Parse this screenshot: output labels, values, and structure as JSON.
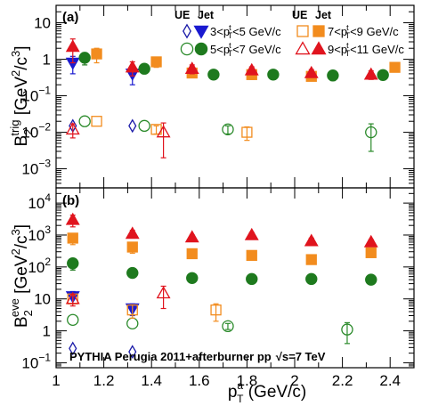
{
  "chart_data": [
    {
      "panel": "(a)",
      "type": "scatter",
      "ylabel": "B_2^trig [GeV^2/c^3]",
      "ylabel_main": "B",
      "ylabel_sub": "2",
      "ylabel_sup": "trig",
      "ylabel_units": " [GeV",
      "ylabel_units_sup": "2",
      "ylabel_units_end": "/c",
      "ylabel_units_sup2": "3",
      "ylabel_units_close": "]",
      "yscale": "log",
      "ylim": [
        0.0003,
        30
      ],
      "yticks": [
        {
          "v": 0.001,
          "lbl": "10"
        },
        {
          "v": 0.01,
          "lbl": "10"
        },
        {
          "v": 0.1,
          "lbl": "10"
        },
        {
          "v": 1,
          "lbl": "1"
        },
        {
          "v": 10,
          "lbl": "10"
        }
      ],
      "ytick_exps": [
        "−3",
        "−2",
        "−1",
        "",
        ""
      ],
      "xlim": [
        1.0,
        2.5
      ],
      "series": [
        {
          "key": "s1_ue",
          "marker": "diamond-open",
          "color": "#1a1aa8",
          "x": [
            1.07,
            1.32
          ],
          "y": [
            0.015,
            0.015
          ],
          "err": [
            0,
            0
          ]
        },
        {
          "key": "s1_jet",
          "marker": "tri-down-filled",
          "color": "#1a1ad0",
          "x": [
            1.07,
            1.32
          ],
          "y": [
            0.8,
            0.4
          ],
          "err": [
            0.4,
            0.2
          ]
        },
        {
          "key": "s2_ue",
          "marker": "circle-open",
          "color": "#2a8a2a",
          "x": [
            1.12,
            1.37,
            1.72,
            2.32
          ],
          "y": [
            0.02,
            0.015,
            0.012,
            0.01
          ],
          "err": [
            0,
            0,
            0.003,
            0.007
          ]
        },
        {
          "key": "s2_jet",
          "marker": "circle-filled",
          "color": "#1e7a1e",
          "x": [
            1.12,
            1.37,
            1.66,
            1.91,
            2.16,
            2.37
          ],
          "y": [
            1.1,
            0.55,
            0.38,
            0.38,
            0.36,
            0.37
          ],
          "err": [
            0.4,
            0.15,
            0.1,
            0.1,
            0.1,
            0.1
          ]
        },
        {
          "key": "s3_ue",
          "marker": "square-open",
          "color": "#f28c1e",
          "x": [
            1.17,
            1.42,
            1.8
          ],
          "y": [
            0.02,
            0.012,
            0.01
          ],
          "err": [
            0,
            0.003,
            0.004
          ]
        },
        {
          "key": "s3_jet",
          "marker": "square-filled",
          "color": "#f28c1e",
          "x": [
            1.17,
            1.42,
            1.57,
            1.82,
            2.07,
            2.42
          ],
          "y": [
            1.4,
            0.85,
            0.42,
            0.38,
            0.34,
            0.6
          ],
          "err": [
            0.6,
            0.25,
            0.1,
            0.1,
            0.08,
            0.15
          ]
        },
        {
          "key": "s4_ue",
          "marker": "tri-up-open",
          "color": "#e0141e",
          "x": [
            1.07,
            1.45
          ],
          "y": [
            0.012,
            0.01
          ],
          "err": [
            0.005,
            0.008
          ]
        },
        {
          "key": "s4_jet",
          "marker": "tri-up-filled",
          "color": "#e0141e",
          "x": [
            1.07,
            1.32,
            1.57,
            1.82,
            2.07,
            2.32
          ],
          "y": [
            2.2,
            0.6,
            0.55,
            0.5,
            0.42,
            0.38
          ],
          "err": [
            1.4,
            0.25,
            0.15,
            0.12,
            0.1,
            0.1
          ]
        }
      ]
    },
    {
      "panel": "(b)",
      "type": "scatter",
      "ylabel": "B_2^eve [GeV^2/c^3]",
      "ylabel_main": "B",
      "ylabel_sub": "2",
      "ylabel_sup": "eve",
      "ylabel_units": " [GeV",
      "ylabel_units_sup": "2",
      "ylabel_units_end": "/c",
      "ylabel_units_sup2": "3",
      "ylabel_units_close": "]",
      "yscale": "log",
      "ylim": [
        0.07,
        30000
      ],
      "yticks": [
        {
          "v": 0.1,
          "lbl": "10"
        },
        {
          "v": 1,
          "lbl": "1"
        },
        {
          "v": 10,
          "lbl": "10"
        },
        {
          "v": 100,
          "lbl": "10"
        },
        {
          "v": 1000,
          "lbl": "10"
        },
        {
          "v": 10000,
          "lbl": "10"
        }
      ],
      "ytick_exps": [
        "−1",
        "",
        "",
        "2",
        "3",
        "4"
      ],
      "xlim": [
        1.0,
        2.5
      ],
      "xticks": [
        1,
        1.2,
        1.4,
        1.6,
        1.8,
        2,
        2.2,
        2.4
      ],
      "xtick_labels": [
        "1",
        "1.2",
        "1.4",
        "1.6",
        "1.8",
        "2",
        "2.2",
        "2.4"
      ],
      "xlabel_main": "p",
      "xlabel_sup": "a",
      "xlabel_sub": "T",
      "xlabel_units": " (GeV/c)",
      "series": [
        {
          "key": "s1_ue",
          "marker": "diamond-open",
          "color": "#1a1aa8",
          "x": [
            1.07,
            1.32
          ],
          "y": [
            0.28,
            0.22
          ],
          "err": [
            0,
            0
          ]
        },
        {
          "key": "s1_jet",
          "marker": "tri-down-filled",
          "color": "#1a1ad0",
          "x": [
            1.07,
            1.32
          ],
          "y": [
            12,
            5
          ],
          "err": [
            5,
            2
          ]
        },
        {
          "key": "s2_ue",
          "marker": "circle-open",
          "color": "#2a8a2a",
          "x": [
            1.07,
            1.32,
            1.72,
            2.22
          ],
          "y": [
            2.2,
            1.7,
            1.4,
            1.1
          ],
          "err": [
            0,
            0,
            0.3,
            0.7
          ]
        },
        {
          "key": "s2_jet",
          "marker": "circle-filled",
          "color": "#1e7a1e",
          "x": [
            1.07,
            1.32,
            1.57,
            1.82,
            2.07,
            2.32
          ],
          "y": [
            130,
            65,
            45,
            42,
            42,
            40
          ],
          "err": [
            50,
            15,
            10,
            8,
            8,
            8
          ]
        },
        {
          "key": "s3_ue",
          "marker": "square-open",
          "color": "#f28c1e",
          "x": [
            1.07,
            1.32,
            1.67
          ],
          "y": [
            10,
            4.5,
            4.5
          ],
          "err": [
            3,
            2,
            2.5
          ]
        },
        {
          "key": "s3_jet",
          "marker": "square-filled",
          "color": "#f28c1e",
          "x": [
            1.07,
            1.32,
            1.57,
            1.82,
            2.07,
            2.32
          ],
          "y": [
            800,
            420,
            260,
            230,
            170,
            280
          ],
          "err": [
            300,
            150,
            70,
            50,
            40,
            60
          ]
        },
        {
          "key": "s4_ue",
          "marker": "tri-up-open",
          "color": "#e0141e",
          "x": [
            1.07,
            1.45
          ],
          "y": [
            10,
            15
          ],
          "err": [
            4,
            10
          ]
        },
        {
          "key": "s4_jet",
          "marker": "tri-up-filled",
          "color": "#e0141e",
          "x": [
            1.07,
            1.32,
            1.57,
            1.82,
            2.07,
            2.32
          ],
          "y": [
            3000,
            1100,
            850,
            1000,
            650,
            600
          ],
          "err": [
            1200,
            300,
            150,
            200,
            150,
            120
          ]
        }
      ]
    }
  ],
  "legend": {
    "head_ue": "UE",
    "head_jet": "Jet",
    "rows": [
      {
        "left": "3<p",
        "right": "<5 GeV/c",
        "sup": "t",
        "sub": "T"
      },
      {
        "left": "5<p",
        "right": "<7 GeV/c",
        "sup": "t",
        "sub": "T"
      },
      {
        "left": "7<p",
        "right": "<9 GeV/c",
        "sup": "t",
        "sub": "T"
      },
      {
        "left": "9<p",
        "right": "<11 GeV/c",
        "sup": "t",
        "sub": "T"
      }
    ]
  },
  "footnote": {
    "part1": "PYTHIA Perugia 2011+afterburner pp",
    "sqrt": "√",
    "part2": "s=7 TeV"
  }
}
